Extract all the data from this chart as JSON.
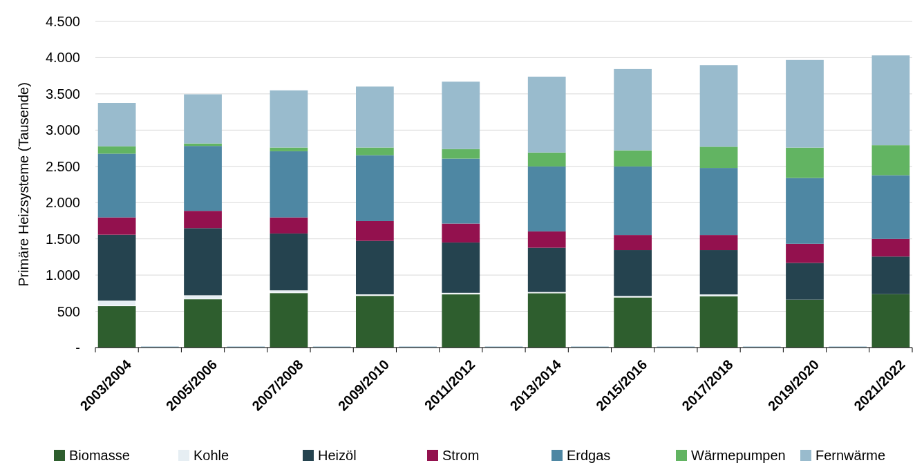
{
  "chart_data": {
    "type": "bar",
    "stacked": true,
    "ylabel": "Primäre Heizsysteme (Tausende)",
    "categories": [
      "2003/2004",
      null,
      "2005/2006",
      null,
      "2007/2008",
      null,
      "2009/2010",
      null,
      "2011/2012",
      null,
      "2013/2014",
      null,
      "2015/2016",
      null,
      "2017/2018",
      null,
      "2019/2020",
      null,
      "2021/2022"
    ],
    "series": [
      {
        "name": "Biomasse",
        "color": "#2e5e2e",
        "values": [
          576,
          null,
          670,
          null,
          755,
          null,
          717,
          null,
          738,
          null,
          753,
          null,
          695,
          null,
          712,
          null,
          661,
          null,
          737
        ]
      },
      {
        "name": "Kohle",
        "color": "#e6eef3",
        "values": [
          72,
          null,
          51,
          null,
          34,
          null,
          17,
          null,
          17,
          null,
          13,
          null,
          17,
          null,
          21,
          null,
          0,
          null,
          0
        ]
      },
      {
        "name": "Heizöl",
        "color": "#25434f",
        "values": [
          909,
          null,
          926,
          null,
          785,
          null,
          738,
          null,
          695,
          null,
          611,
          null,
          632,
          null,
          611,
          null,
          507,
          null,
          519
        ]
      },
      {
        "name": "Strom",
        "color": "#93114e",
        "values": [
          239,
          null,
          239,
          null,
          222,
          null,
          273,
          null,
          261,
          null,
          226,
          null,
          209,
          null,
          209,
          null,
          264,
          null,
          243
        ]
      },
      {
        "name": "Erdgas",
        "color": "#4e87a3",
        "values": [
          879,
          null,
          896,
          null,
          913,
          null,
          909,
          null,
          896,
          null,
          896,
          null,
          946,
          null,
          925,
          null,
          908,
          null,
          879
        ]
      },
      {
        "name": "Wärmepumpen",
        "color": "#62b462",
        "values": [
          102,
          null,
          34,
          null,
          51,
          null,
          106,
          null,
          132,
          null,
          192,
          null,
          222,
          null,
          293,
          null,
          419,
          null,
          414
        ]
      },
      {
        "name": "Fernwärme",
        "color": "#99bbcd",
        "values": [
          598,
          15,
          678,
          15,
          789,
          15,
          841,
          15,
          930,
          15,
          1047,
          15,
          1122,
          15,
          1126,
          15,
          1209,
          15,
          1239
        ]
      }
    ],
    "ylim": [
      0,
      4500
    ],
    "yticks": [
      {
        "value": 0,
        "label": "-"
      },
      {
        "value": 500,
        "label": "500"
      },
      {
        "value": 1000,
        "label": "1.000"
      },
      {
        "value": 1500,
        "label": "1.500"
      },
      {
        "value": 2000,
        "label": "2.000"
      },
      {
        "value": 2500,
        "label": "2.500"
      },
      {
        "value": 3000,
        "label": "3.000"
      },
      {
        "value": 3500,
        "label": "3.500"
      },
      {
        "value": 4000,
        "label": "4.000"
      },
      {
        "value": 4500,
        "label": "4.500"
      }
    ],
    "grid": "y",
    "legend": "bottom"
  }
}
